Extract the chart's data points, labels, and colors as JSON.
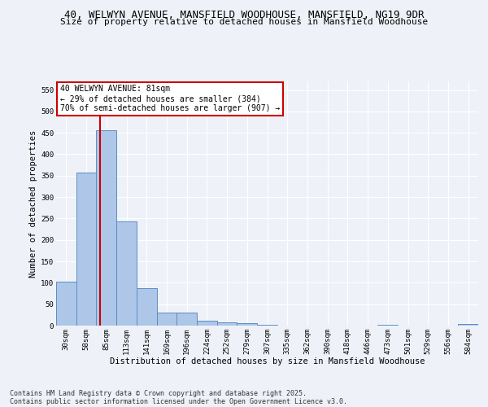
{
  "title_line1": "40, WELWYN AVENUE, MANSFIELD WOODHOUSE, MANSFIELD, NG19 9DR",
  "title_line2": "Size of property relative to detached houses in Mansfield Woodhouse",
  "xlabel": "Distribution of detached houses by size in Mansfield Woodhouse",
  "ylabel": "Number of detached properties",
  "categories": [
    "30sqm",
    "58sqm",
    "85sqm",
    "113sqm",
    "141sqm",
    "169sqm",
    "196sqm",
    "224sqm",
    "252sqm",
    "279sqm",
    "307sqm",
    "335sqm",
    "362sqm",
    "390sqm",
    "418sqm",
    "446sqm",
    "473sqm",
    "501sqm",
    "529sqm",
    "556sqm",
    "584sqm"
  ],
  "values": [
    103,
    357,
    456,
    243,
    88,
    30,
    30,
    12,
    8,
    5,
    2,
    0,
    0,
    0,
    0,
    0,
    2,
    0,
    0,
    0,
    3
  ],
  "bar_color": "#aec6e8",
  "bar_edge_color": "#5a8fc2",
  "vline_x": 1.7,
  "vline_color": "#cc0000",
  "annotation_text": "40 WELWYN AVENUE: 81sqm\n← 29% of detached houses are smaller (384)\n70% of semi-detached houses are larger (907) →",
  "annotation_box_color": "#ffffff",
  "annotation_box_edge": "#cc0000",
  "ylim": [
    0,
    570
  ],
  "yticks": [
    0,
    50,
    100,
    150,
    200,
    250,
    300,
    350,
    400,
    450,
    500,
    550
  ],
  "footnote": "Contains HM Land Registry data © Crown copyright and database right 2025.\nContains public sector information licensed under the Open Government Licence v3.0.",
  "bg_color": "#eef2f8",
  "plot_bg_color": "#eef2f8",
  "grid_color": "#ffffff",
  "title_fontsize": 9,
  "subtitle_fontsize": 8,
  "axis_label_fontsize": 7.5,
  "tick_fontsize": 6.5,
  "footnote_fontsize": 6,
  "ann_fontsize": 7
}
